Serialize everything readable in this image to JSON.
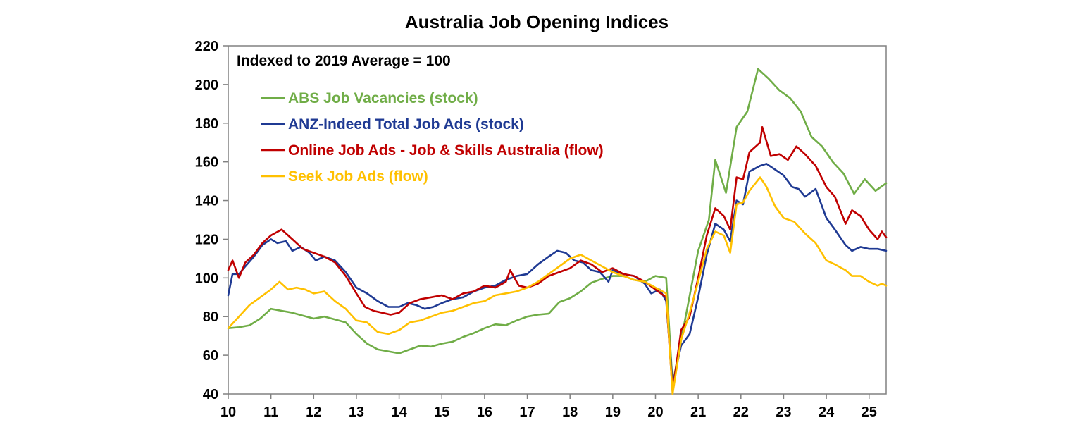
{
  "chart_data": {
    "type": "line",
    "title": "Australia Job Opening Indices",
    "annotation": "Indexed to 2019 Average = 100",
    "xlabel": "",
    "ylabel": "",
    "xlim": [
      10,
      25.4
    ],
    "ylim": [
      40,
      220
    ],
    "x_ticks": [
      10,
      11,
      12,
      13,
      14,
      15,
      16,
      17,
      18,
      19,
      20,
      21,
      22,
      23,
      24,
      25
    ],
    "y_ticks": [
      40,
      60,
      80,
      100,
      120,
      140,
      160,
      180,
      200,
      220
    ],
    "grid": false,
    "legend_position": "top-left",
    "series": [
      {
        "name": "ABS Job Vacancies (stock)",
        "color": "#70ad47",
        "points": [
          [
            10,
            74
          ],
          [
            10.25,
            74.5
          ],
          [
            10.5,
            75.5
          ],
          [
            10.75,
            79
          ],
          [
            11,
            84
          ],
          [
            11.25,
            83
          ],
          [
            11.5,
            82
          ],
          [
            11.75,
            80.5
          ],
          [
            12,
            79
          ],
          [
            12.25,
            80
          ],
          [
            12.5,
            78.5
          ],
          [
            12.75,
            77
          ],
          [
            13,
            71
          ],
          [
            13.25,
            66
          ],
          [
            13.5,
            63
          ],
          [
            13.75,
            62
          ],
          [
            14,
            61
          ],
          [
            14.25,
            63
          ],
          [
            14.5,
            65
          ],
          [
            14.75,
            64.5
          ],
          [
            15,
            66
          ],
          [
            15.25,
            67
          ],
          [
            15.5,
            69.5
          ],
          [
            15.75,
            71.5
          ],
          [
            16,
            74
          ],
          [
            16.25,
            76
          ],
          [
            16.5,
            75.5
          ],
          [
            16.75,
            78
          ],
          [
            17,
            80
          ],
          [
            17.25,
            81
          ],
          [
            17.5,
            81.5
          ],
          [
            17.75,
            87.5
          ],
          [
            18,
            89.5
          ],
          [
            18.25,
            93
          ],
          [
            18.5,
            97.5
          ],
          [
            18.75,
            99.5
          ],
          [
            19,
            101
          ],
          [
            19.25,
            101
          ],
          [
            19.5,
            99
          ],
          [
            19.75,
            98
          ],
          [
            20,
            101
          ],
          [
            20.25,
            100
          ],
          [
            20.4,
            45
          ],
          [
            20.75,
            85
          ],
          [
            21,
            114
          ],
          [
            21.25,
            130
          ],
          [
            21.4,
            161
          ],
          [
            21.65,
            144
          ],
          [
            21.9,
            178
          ],
          [
            22.15,
            186
          ],
          [
            22.4,
            208
          ],
          [
            22.65,
            203
          ],
          [
            22.9,
            197
          ],
          [
            23.15,
            193
          ],
          [
            23.4,
            186
          ],
          [
            23.65,
            173
          ],
          [
            23.9,
            168
          ],
          [
            24.15,
            160
          ],
          [
            24.4,
            154
          ],
          [
            24.65,
            143.5
          ],
          [
            24.9,
            151
          ],
          [
            25.15,
            145
          ],
          [
            25.4,
            149
          ]
        ]
      },
      {
        "name": "ANZ-Indeed Total Job Ads (stock)",
        "color": "#1f3a93",
        "points": [
          [
            10,
            91
          ],
          [
            10.1,
            102
          ],
          [
            10.25,
            102
          ],
          [
            10.4,
            106
          ],
          [
            10.6,
            111
          ],
          [
            10.8,
            117
          ],
          [
            11,
            120
          ],
          [
            11.15,
            118
          ],
          [
            11.35,
            119
          ],
          [
            11.5,
            114
          ],
          [
            11.7,
            116
          ],
          [
            11.9,
            113
          ],
          [
            12.05,
            109
          ],
          [
            12.25,
            111
          ],
          [
            12.5,
            109
          ],
          [
            12.75,
            103
          ],
          [
            13,
            95
          ],
          [
            13.25,
            92
          ],
          [
            13.5,
            88
          ],
          [
            13.75,
            85
          ],
          [
            14,
            85
          ],
          [
            14.2,
            87
          ],
          [
            14.4,
            86
          ],
          [
            14.6,
            84
          ],
          [
            14.8,
            85
          ],
          [
            15,
            87
          ],
          [
            15.25,
            89
          ],
          [
            15.5,
            90
          ],
          [
            15.75,
            93
          ],
          [
            16,
            95
          ],
          [
            16.25,
            96
          ],
          [
            16.5,
            99
          ],
          [
            16.75,
            101
          ],
          [
            17,
            102
          ],
          [
            17.25,
            107
          ],
          [
            17.5,
            111
          ],
          [
            17.7,
            114
          ],
          [
            17.9,
            113
          ],
          [
            18.1,
            109
          ],
          [
            18.3,
            108
          ],
          [
            18.5,
            104
          ],
          [
            18.7,
            103
          ],
          [
            18.9,
            98
          ],
          [
            19,
            104
          ],
          [
            19.25,
            102
          ],
          [
            19.5,
            101
          ],
          [
            19.75,
            97
          ],
          [
            19.9,
            92
          ],
          [
            20.1,
            94
          ],
          [
            20.25,
            88
          ],
          [
            20.4,
            45
          ],
          [
            20.6,
            65
          ],
          [
            20.8,
            71
          ],
          [
            21,
            90
          ],
          [
            21.2,
            112
          ],
          [
            21.4,
            128
          ],
          [
            21.6,
            125
          ],
          [
            21.75,
            119
          ],
          [
            21.9,
            140
          ],
          [
            22.05,
            138
          ],
          [
            22.2,
            155
          ],
          [
            22.45,
            158
          ],
          [
            22.6,
            159
          ],
          [
            22.8,
            156
          ],
          [
            23,
            153
          ],
          [
            23.2,
            147
          ],
          [
            23.35,
            146
          ],
          [
            23.5,
            142
          ],
          [
            23.75,
            146
          ],
          [
            24,
            131
          ],
          [
            24.2,
            125
          ],
          [
            24.45,
            117
          ],
          [
            24.6,
            114
          ],
          [
            24.8,
            116
          ],
          [
            25,
            115
          ],
          [
            25.2,
            115
          ],
          [
            25.4,
            114
          ]
        ]
      },
      {
        "name": "Online Job Ads - Job & Skills Australia (flow)",
        "color": "#c00000",
        "points": [
          [
            10,
            104
          ],
          [
            10.1,
            109
          ],
          [
            10.25,
            100
          ],
          [
            10.4,
            108
          ],
          [
            10.6,
            112
          ],
          [
            10.8,
            118
          ],
          [
            11,
            122
          ],
          [
            11.25,
            125
          ],
          [
            11.5,
            120
          ],
          [
            11.75,
            115
          ],
          [
            12,
            113
          ],
          [
            12.25,
            111
          ],
          [
            12.5,
            108
          ],
          [
            12.75,
            101
          ],
          [
            13,
            92
          ],
          [
            13.2,
            85
          ],
          [
            13.4,
            83
          ],
          [
            13.6,
            82
          ],
          [
            13.8,
            81
          ],
          [
            14,
            82
          ],
          [
            14.25,
            87
          ],
          [
            14.5,
            89
          ],
          [
            14.75,
            90
          ],
          [
            15,
            91
          ],
          [
            15.25,
            89
          ],
          [
            15.5,
            92
          ],
          [
            15.75,
            93
          ],
          [
            16,
            96
          ],
          [
            16.25,
            95
          ],
          [
            16.5,
            98
          ],
          [
            16.6,
            104
          ],
          [
            16.8,
            96
          ],
          [
            17,
            95
          ],
          [
            17.25,
            97
          ],
          [
            17.5,
            101
          ],
          [
            17.75,
            103
          ],
          [
            18,
            105
          ],
          [
            18.25,
            109
          ],
          [
            18.5,
            107
          ],
          [
            18.75,
            103
          ],
          [
            19,
            105
          ],
          [
            19.25,
            102
          ],
          [
            19.5,
            101
          ],
          [
            19.75,
            98
          ],
          [
            20,
            94
          ],
          [
            20.25,
            90
          ],
          [
            20.4,
            41
          ],
          [
            20.6,
            73
          ],
          [
            20.8,
            80
          ],
          [
            21,
            100
          ],
          [
            21.2,
            122
          ],
          [
            21.4,
            136
          ],
          [
            21.6,
            132
          ],
          [
            21.75,
            125
          ],
          [
            21.9,
            152
          ],
          [
            22.05,
            151
          ],
          [
            22.2,
            165
          ],
          [
            22.45,
            170
          ],
          [
            22.5,
            178
          ],
          [
            22.7,
            163
          ],
          [
            22.9,
            164
          ],
          [
            23.1,
            161
          ],
          [
            23.3,
            168
          ],
          [
            23.5,
            164
          ],
          [
            23.75,
            158
          ],
          [
            24,
            147
          ],
          [
            24.2,
            142
          ],
          [
            24.45,
            128
          ],
          [
            24.6,
            135
          ],
          [
            24.8,
            132
          ],
          [
            25,
            125
          ],
          [
            25.2,
            120
          ],
          [
            25.3,
            124
          ],
          [
            25.4,
            121
          ]
        ]
      },
      {
        "name": "Seek Job Ads (flow)",
        "color": "#ffc000",
        "points": [
          [
            10,
            74
          ],
          [
            10.25,
            80
          ],
          [
            10.5,
            86
          ],
          [
            10.75,
            90
          ],
          [
            11,
            94
          ],
          [
            11.2,
            98
          ],
          [
            11.4,
            94
          ],
          [
            11.6,
            95
          ],
          [
            11.8,
            94
          ],
          [
            12,
            92
          ],
          [
            12.25,
            93
          ],
          [
            12.5,
            88
          ],
          [
            12.75,
            84
          ],
          [
            13,
            78
          ],
          [
            13.25,
            77
          ],
          [
            13.5,
            72
          ],
          [
            13.75,
            71
          ],
          [
            14,
            73
          ],
          [
            14.25,
            77
          ],
          [
            14.5,
            78
          ],
          [
            14.75,
            80
          ],
          [
            15,
            82
          ],
          [
            15.25,
            83
          ],
          [
            15.5,
            85
          ],
          [
            15.75,
            87
          ],
          [
            16,
            88
          ],
          [
            16.25,
            91
          ],
          [
            16.5,
            92
          ],
          [
            16.75,
            93
          ],
          [
            17,
            95
          ],
          [
            17.25,
            98
          ],
          [
            17.5,
            102
          ],
          [
            17.75,
            106
          ],
          [
            18,
            110
          ],
          [
            18.25,
            112
          ],
          [
            18.5,
            109
          ],
          [
            18.75,
            106
          ],
          [
            19,
            103
          ],
          [
            19.25,
            101
          ],
          [
            19.5,
            99
          ],
          [
            19.75,
            98
          ],
          [
            20,
            95
          ],
          [
            20.25,
            92
          ],
          [
            20.4,
            40
          ],
          [
            20.6,
            68
          ],
          [
            20.8,
            82
          ],
          [
            21,
            98
          ],
          [
            21.2,
            115
          ],
          [
            21.4,
            124
          ],
          [
            21.6,
            122
          ],
          [
            21.75,
            113
          ],
          [
            21.9,
            138
          ],
          [
            22.05,
            139
          ],
          [
            22.2,
            145
          ],
          [
            22.45,
            152
          ],
          [
            22.6,
            147
          ],
          [
            22.8,
            137
          ],
          [
            23,
            131
          ],
          [
            23.25,
            129
          ],
          [
            23.5,
            123
          ],
          [
            23.75,
            118
          ],
          [
            24,
            109
          ],
          [
            24.2,
            107
          ],
          [
            24.45,
            104
          ],
          [
            24.6,
            101
          ],
          [
            24.8,
            101
          ],
          [
            25,
            98
          ],
          [
            25.2,
            96
          ],
          [
            25.3,
            97
          ],
          [
            25.4,
            96
          ]
        ]
      }
    ]
  }
}
